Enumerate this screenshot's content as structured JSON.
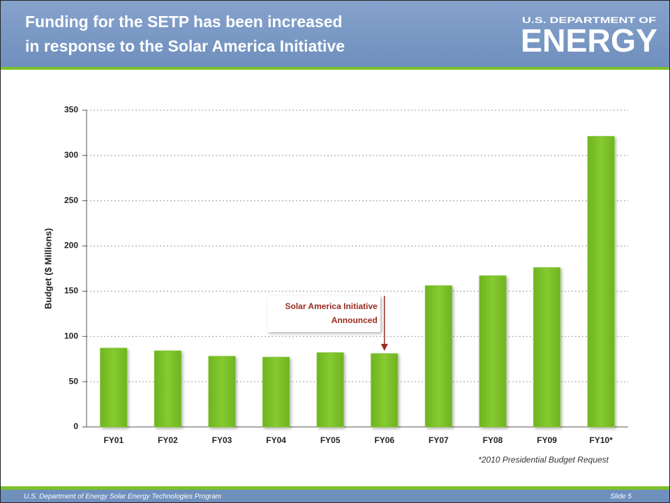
{
  "header": {
    "title_lines": [
      "Funding for the SETP has been increased",
      "in response to the Solar America Initiative"
    ],
    "logo_top": "U.S. DEPARTMENT OF",
    "logo_main": "ENERGY"
  },
  "footer": {
    "left": "U.S. Department of Energy Solar Energy Technologies Program",
    "right": "Slide 5"
  },
  "chart_data": {
    "type": "bar",
    "categories": [
      "FY01",
      "FY02",
      "FY03",
      "FY04",
      "FY05",
      "FY06",
      "FY07",
      "FY08",
      "FY09",
      "FY10*"
    ],
    "values": [
      87,
      84,
      78,
      77,
      82,
      81,
      156,
      167,
      176,
      321
    ],
    "color": "#7cc12b",
    "ylabel": "Budget ($ Millions)",
    "ylim": [
      0,
      350
    ],
    "yticks": [
      0,
      50,
      100,
      150,
      200,
      250,
      300,
      350
    ],
    "grid": true,
    "annotation": {
      "text": [
        "Solar America Initiative",
        "Announced"
      ],
      "category": "FY06"
    },
    "note": "*2010 Presidential Budget Request"
  }
}
